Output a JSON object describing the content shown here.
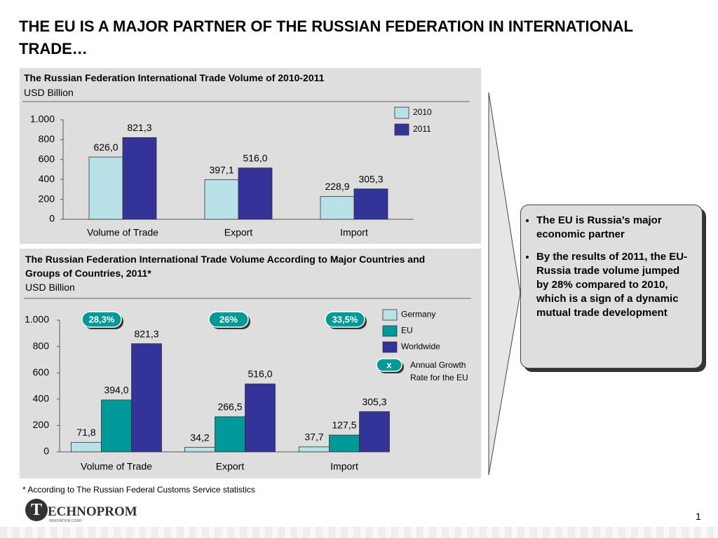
{
  "slide": {
    "title": "THE EU IS A MAJOR PARTNER OF THE RUSSIAN FEDERATION IN INTERNATIONAL TRADE…",
    "bullets": [
      "The EU is Russia’s major economic partner",
      "By the results of 2011, the EU-Russia trade volume jumped by 28% compared to 2010, which is a sign of a dynamic mutual trade development"
    ],
    "footnote": "* According to The Russian Federal Customs Service statistics",
    "logo": "ECHNOPROM",
    "logo_letter": "T",
    "logo_sub": "INNOVATION CORP.",
    "page": "1"
  },
  "chart_data": [
    {
      "type": "bar",
      "title": "The Russian Federation International Trade Volume of 2010-2011",
      "subtitle": "USD Billion",
      "categories": [
        "Volume of Trade",
        "Export",
        "Import"
      ],
      "series": [
        {
          "name": "2010",
          "color": "#b9e2e8",
          "values": [
            626,
            397.1,
            228.9
          ],
          "value_labels": [
            "626,0",
            "397,1",
            "228,9"
          ]
        },
        {
          "name": "2011",
          "color": "#333399",
          "values": [
            821.3,
            516,
            305.3
          ],
          "value_labels": [
            "821,3",
            "516,0",
            "305,3"
          ]
        }
      ],
      "ylim": [
        0,
        1000
      ],
      "yticks": [
        0,
        200,
        400,
        600,
        800,
        {
          "value": 1000,
          "label": "1.000"
        }
      ],
      "legend": "top-right"
    },
    {
      "type": "bar",
      "title": "The Russian Federation International Trade Volume According to Major Countries and Groups of Countries, 2011*",
      "subtitle": "USD Billion",
      "categories": [
        "Volume of Trade",
        "Export",
        "Import"
      ],
      "series": [
        {
          "name": "Germany",
          "color": "#b9e2e8",
          "values": [
            71.8,
            34.2,
            37.7
          ],
          "value_labels": [
            "71,8",
            "34,2",
            "37,7"
          ]
        },
        {
          "name": "EU",
          "color": "#009999",
          "values": [
            394,
            266.5,
            127.5
          ],
          "value_labels": [
            "394,0",
            "266,5",
            "127,5"
          ]
        },
        {
          "name": "Worldwide",
          "color": "#333399",
          "values": [
            821.3,
            516,
            305.3
          ],
          "value_labels": [
            "821,3",
            "516,0",
            "305,3"
          ]
        }
      ],
      "growth": {
        "values": [
          28.3,
          26,
          33.5
        ],
        "value_labels": [
          "28,3%",
          "26%",
          "33,5%"
        ],
        "color": "#009999",
        "symbol": "x",
        "label": "Annual Growth Rate for  the EU"
      },
      "ylim": [
        0,
        1000
      ],
      "yticks": [
        0,
        200,
        400,
        600,
        800,
        {
          "value": 1000,
          "label": "1.000"
        }
      ],
      "legend": "top-right"
    }
  ]
}
